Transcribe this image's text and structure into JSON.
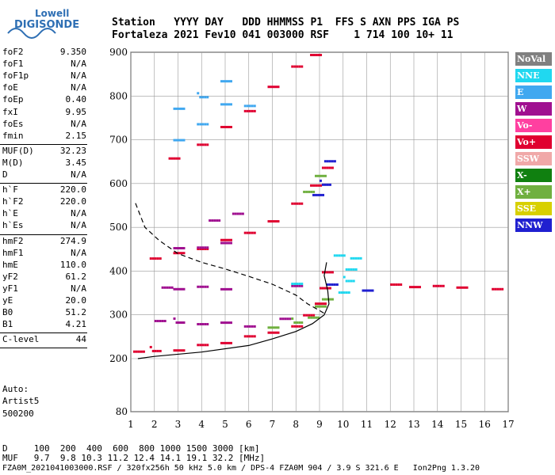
{
  "logo": {
    "line1": "Lowell",
    "line2": "DIGISONDE"
  },
  "header": {
    "row1": "Station   YYYY DAY   DDD HHMMSS P1  FFS S AXN PPS IGA PS",
    "row2": "Fortaleza 2021 Fev10 041 003000 RSF    1 714 100 10+ 11"
  },
  "params": [
    {
      "k": "foF2",
      "v": "9.350"
    },
    {
      "k": "foF1",
      "v": "N/A"
    },
    {
      "k": "foF1p",
      "v": "N/A"
    },
    {
      "k": "foE",
      "v": "N/A"
    },
    {
      "k": "foEp",
      "v": "0.40"
    },
    {
      "k": "fxI",
      "v": "9.95"
    },
    {
      "k": "foEs",
      "v": "N/A"
    },
    {
      "k": "fmin",
      "v": "2.15"
    },
    {
      "k": "MUF(D)",
      "v": "32.23"
    },
    {
      "k": "M(D)",
      "v": "3.45"
    },
    {
      "k": "D",
      "v": "N/A"
    },
    {
      "k": "h`F",
      "v": "220.0"
    },
    {
      "k": "h`F2",
      "v": "220.0"
    },
    {
      "k": "h`E",
      "v": "N/A"
    },
    {
      "k": "h`Es",
      "v": "N/A"
    },
    {
      "k": "hmF2",
      "v": "274.9"
    },
    {
      "k": "hmF1",
      "v": "N/A"
    },
    {
      "k": "hmE",
      "v": "110.0"
    },
    {
      "k": "yF2",
      "v": "61.2"
    },
    {
      "k": "yF1",
      "v": "N/A"
    },
    {
      "k": "yE",
      "v": "20.0"
    },
    {
      "k": "B0",
      "v": "51.2"
    },
    {
      "k": "B1",
      "v": "4.21"
    },
    {
      "k": "C-level",
      "v": "44"
    }
  ],
  "auto": {
    "l1": "Auto:",
    "l2": "Artist5",
    "l3": "500200"
  },
  "legend": [
    {
      "label": "NoVal",
      "color": "#808080"
    },
    {
      "label": "NNE",
      "color": "#20d8f0"
    },
    {
      "label": "E",
      "color": "#40a8f0"
    },
    {
      "label": "W",
      "color": "#a01090"
    },
    {
      "label": "Vo-",
      "color": "#ff40a0"
    },
    {
      "label": "Vo+",
      "color": "#e00030"
    },
    {
      "label": "SSW",
      "color": "#f0a8a8"
    },
    {
      "label": "X-",
      "color": "#108010"
    },
    {
      "label": "X+",
      "color": "#70b040"
    },
    {
      "label": "SSE",
      "color": "#d8d000"
    },
    {
      "label": "NNW",
      "color": "#2020d0"
    }
  ],
  "footer": {
    "d_row": "D     100  200  400  600  800 1000 1500 3000 [km]",
    "muf_row": "MUF   9.7  9.8 10.3 11.2 12.4 14.1 19.1 32.2 [MHz]",
    "file_row": "FZA0M_2021041003000.RSF / 320fx256h 50 kHz 5.0 km / DPS-4 FZA0M 904 / 3.9 S 321.6 E   Ion2Png 1.3.20"
  },
  "chart_data": {
    "type": "scatter",
    "xlabel": "",
    "ylabel": "",
    "x_range": [
      1,
      17
    ],
    "y_range": [
      80,
      900
    ],
    "x_ticks": [
      1,
      2,
      3,
      4,
      5,
      6,
      7,
      8,
      9,
      10,
      11,
      12,
      13,
      14,
      15,
      16,
      17
    ],
    "y_ticks": [
      80,
      200,
      300,
      400,
      500,
      600,
      700,
      800,
      900
    ],
    "grid": true,
    "series": [
      {
        "name": "Vo+",
        "points": [
          [
            1.3,
            215
          ],
          [
            2,
            220
          ],
          [
            3,
            225
          ],
          [
            4,
            232
          ],
          [
            5,
            240
          ],
          [
            6,
            250
          ],
          [
            7,
            262
          ],
          [
            8,
            280
          ],
          [
            8.5,
            300
          ],
          [
            9,
            330
          ],
          [
            9.2,
            360
          ],
          [
            9.3,
            400
          ],
          [
            2,
            435
          ],
          [
            3,
            442
          ],
          [
            4,
            455
          ],
          [
            5,
            470
          ],
          [
            6,
            490
          ],
          [
            7,
            520
          ],
          [
            8,
            555
          ],
          [
            8.8,
            600
          ],
          [
            9.3,
            635
          ],
          [
            2.8,
            660
          ],
          [
            4,
            695
          ],
          [
            5,
            730
          ],
          [
            6,
            770
          ],
          [
            7,
            820
          ],
          [
            8,
            870
          ],
          [
            8.8,
            900
          ],
          [
            12.2,
            370
          ],
          [
            13,
            368
          ],
          [
            14,
            365
          ],
          [
            15,
            365
          ],
          [
            16.5,
            365
          ]
        ]
      },
      {
        "name": "W",
        "points": [
          [
            2.2,
            285
          ],
          [
            3,
            285
          ],
          [
            4,
            285
          ],
          [
            5,
            283
          ],
          [
            6,
            278
          ],
          [
            7.5,
            290
          ],
          [
            2.5,
            365
          ],
          [
            3,
            365
          ],
          [
            4,
            365
          ],
          [
            5,
            363
          ],
          [
            8,
            365
          ],
          [
            3,
            455
          ],
          [
            4,
            460
          ],
          [
            5,
            465
          ],
          [
            4.5,
            520
          ],
          [
            5.5,
            530
          ]
        ]
      },
      {
        "name": "NNE",
        "points": [
          [
            10,
            350
          ],
          [
            10.2,
            380
          ],
          [
            10.3,
            410
          ],
          [
            10.5,
            430
          ],
          [
            9.8,
            440
          ],
          [
            8,
            370
          ]
        ]
      },
      {
        "name": "E",
        "points": [
          [
            3,
            770
          ],
          [
            4,
            800
          ],
          [
            5,
            840
          ],
          [
            3,
            700
          ],
          [
            4,
            740
          ],
          [
            5,
            780
          ],
          [
            6,
            780
          ]
        ]
      },
      {
        "name": "X+",
        "points": [
          [
            7,
            270
          ],
          [
            8,
            285
          ],
          [
            8.7,
            300
          ],
          [
            9,
            320
          ],
          [
            9.3,
            340
          ],
          [
            8.5,
            580
          ],
          [
            9,
            620
          ]
        ]
      },
      {
        "name": "NNW",
        "points": [
          [
            9.4,
            650
          ],
          [
            9.2,
            600
          ],
          [
            8.9,
            580
          ],
          [
            9.5,
            370
          ],
          [
            11,
            360
          ]
        ]
      }
    ],
    "curves": [
      {
        "name": "profile-solid",
        "points": [
          [
            1.3,
            200
          ],
          [
            2,
            205
          ],
          [
            4,
            215
          ],
          [
            6,
            230
          ],
          [
            7,
            245
          ],
          [
            8,
            262
          ],
          [
            8.7,
            280
          ],
          [
            9.2,
            300
          ],
          [
            9.4,
            325
          ],
          [
            9.35,
            355
          ],
          [
            9.2,
            390
          ],
          [
            9.3,
            420
          ]
        ]
      },
      {
        "name": "profile-dashed",
        "points": [
          [
            1.2,
            555
          ],
          [
            1.6,
            500
          ],
          [
            2.2,
            470
          ],
          [
            3,
            440
          ],
          [
            4,
            420
          ],
          [
            5,
            405
          ],
          [
            6,
            388
          ],
          [
            7,
            370
          ],
          [
            8,
            345
          ],
          [
            8.5,
            325
          ],
          [
            9,
            310
          ],
          [
            9.3,
            300
          ]
        ]
      }
    ]
  }
}
